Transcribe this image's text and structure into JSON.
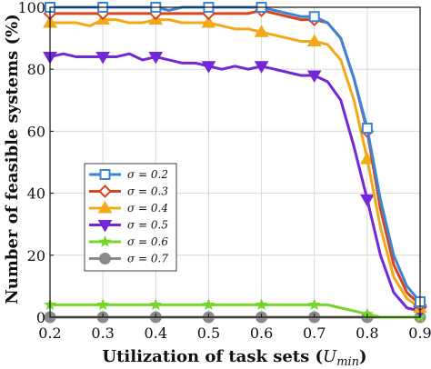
{
  "chart_data": {
    "type": "line",
    "xlabel": "Utilization of task sets (",
    "xlabel_sym": "U",
    "xlabel_sub": "min",
    "xlabel_close": ")",
    "ylabel": "Number of feasible systems (%)",
    "xlim": [
      0.2,
      0.9
    ],
    "ylim": [
      0,
      100
    ],
    "xticks": [
      0.2,
      0.3,
      0.4,
      0.5,
      0.6,
      0.7,
      0.8,
      0.9
    ],
    "xtick_labels": [
      "0.2",
      "0.3",
      "0.4",
      "0.5",
      "0.6",
      "0.7",
      "0.8",
      "0.9"
    ],
    "yticks": [
      0,
      20,
      40,
      60,
      80,
      100
    ],
    "ytick_labels": [
      "0",
      "20",
      "40",
      "60",
      "80",
      "100"
    ],
    "grid": true,
    "legend_position": "center-left",
    "x": [
      0.2,
      0.225,
      0.25,
      0.275,
      0.3,
      0.325,
      0.35,
      0.375,
      0.4,
      0.425,
      0.45,
      0.475,
      0.5,
      0.525,
      0.55,
      0.575,
      0.6,
      0.625,
      0.65,
      0.675,
      0.7,
      0.725,
      0.75,
      0.775,
      0.8,
      0.825,
      0.85,
      0.875,
      0.9
    ],
    "series": [
      {
        "name": "σ = 0.2",
        "color": "#3c84d6",
        "marker": "square",
        "values": [
          100,
          100,
          100,
          100,
          100,
          100,
          100,
          100,
          100,
          99,
          100,
          100,
          100,
          100,
          100,
          100,
          100,
          99,
          98,
          97,
          97,
          95,
          90,
          77,
          61,
          38,
          20,
          10,
          5
        ]
      },
      {
        "name": "σ = 0.3",
        "color": "#d9441c",
        "marker": "diamond",
        "values": [
          98,
          98,
          98,
          98,
          98,
          98,
          98,
          98,
          98,
          98,
          98,
          98,
          98,
          98,
          98,
          98,
          99,
          98,
          97,
          96,
          96,
          95,
          90,
          77,
          60,
          35,
          17,
          8,
          4
        ]
      },
      {
        "name": "σ = 0.4",
        "color": "#f2a918",
        "marker": "triangle",
        "values": [
          95,
          95,
          95,
          94,
          96,
          96,
          95,
          95,
          96,
          96,
          95,
          95,
          95,
          94,
          93,
          93,
          92,
          91,
          90,
          89,
          89,
          88,
          83,
          70,
          51,
          29,
          13,
          6,
          3
        ]
      },
      {
        "name": "σ = 0.5",
        "color": "#7327d6",
        "marker": "triangle-down",
        "values": [
          84,
          85,
          84,
          84,
          84,
          84,
          85,
          83,
          84,
          83,
          82,
          82,
          81,
          80,
          81,
          80,
          81,
          80,
          79,
          78,
          78,
          76,
          70,
          55,
          38,
          20,
          8,
          3,
          2
        ]
      },
      {
        "name": "σ = 0.6",
        "color": "#74d62a",
        "marker": "star",
        "values": [
          4,
          4,
          4,
          4,
          4,
          4,
          4,
          4,
          4,
          4,
          4,
          4,
          4,
          4,
          4,
          4,
          4,
          4,
          4,
          4,
          4,
          4,
          3,
          2,
          1,
          0,
          0,
          0,
          0
        ]
      },
      {
        "name": "σ = 0.7",
        "color": "#8a8a8a",
        "marker": "circle",
        "values": [
          0,
          0,
          0,
          0,
          0,
          0,
          0,
          0,
          0,
          0,
          0,
          0,
          0,
          0,
          0,
          0,
          0,
          0,
          0,
          0,
          0,
          0,
          0,
          0,
          0,
          0,
          0,
          0,
          0
        ]
      }
    ]
  }
}
